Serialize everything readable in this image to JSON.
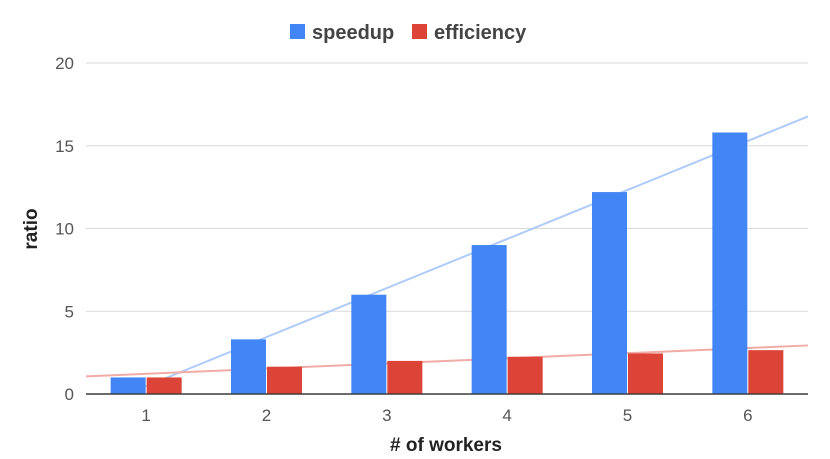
{
  "chart_data": {
    "type": "bar",
    "title": "",
    "xlabel": "# of workers",
    "ylabel": "ratio",
    "categories": [
      "1",
      "2",
      "3",
      "4",
      "5",
      "6"
    ],
    "ylim": [
      0,
      20
    ],
    "yticks": [
      0,
      5,
      10,
      15,
      20
    ],
    "grid": true,
    "legend_position": "top-center",
    "series": [
      {
        "name": "speedup",
        "color": "#4285f4",
        "trendline_color": "#aecbfa",
        "values": [
          1.0,
          3.3,
          6.0,
          9.0,
          12.2,
          15.8
        ]
      },
      {
        "name": "efficiency",
        "color": "#db4437",
        "trendline_color": "#f1aca6",
        "values": [
          1.0,
          1.65,
          2.0,
          2.25,
          2.45,
          2.65
        ]
      }
    ]
  }
}
